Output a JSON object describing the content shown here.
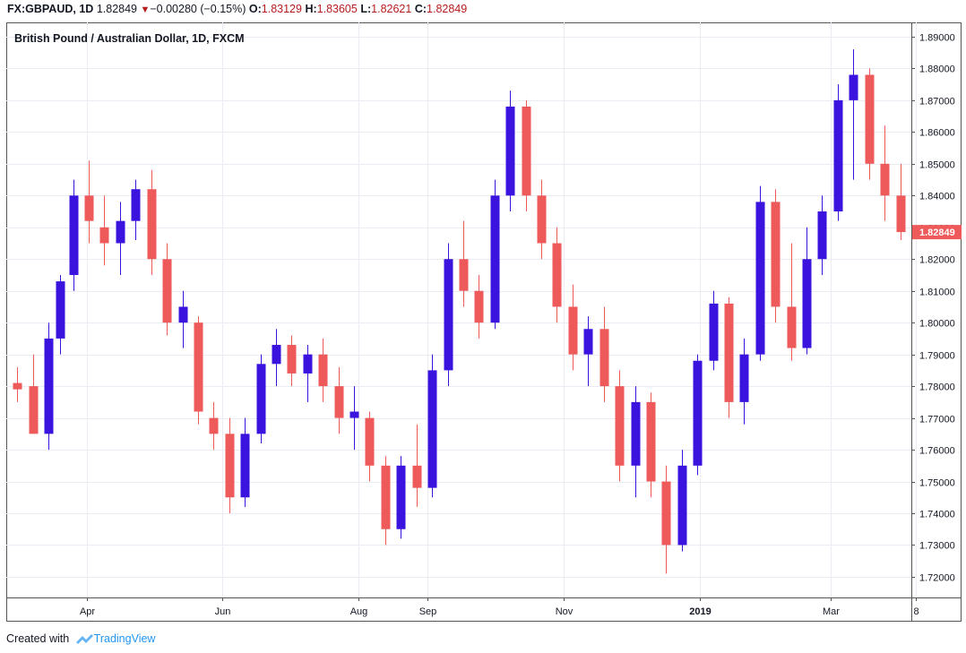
{
  "header": {
    "symbol": "FX:GBPAUD",
    "interval": "1D",
    "last": "1.82849",
    "change": "−0.00280 (−0.15%)",
    "open_label": "O:",
    "open": "1.83129",
    "high_label": "H:",
    "high": "1.83605",
    "low_label": "L:",
    "low": "1.82621",
    "close_label": "C:",
    "close": "1.82849",
    "arrow_icon": "down-triangle-icon"
  },
  "footer": {
    "created_with": "Created with",
    "brand": "TradingView",
    "logo_icon": "tradingview-cloud-icon"
  },
  "colors": {
    "up": "#3a13de",
    "down": "#ee5a5a",
    "grid": "#e9ecf2",
    "axis": "#555555",
    "price_tag": "#ee5a5a"
  },
  "chart_data": {
    "type": "candlestick",
    "title": "British Pound / Australian Dollar, 1D, FXCM",
    "ylim": [
      1.7135,
      1.8945
    ],
    "yticks": [
      "1.72000",
      "1.73000",
      "1.74000",
      "1.75000",
      "1.76000",
      "1.77000",
      "1.78000",
      "1.79000",
      "1.80000",
      "1.81000",
      "1.82000",
      "1.83000",
      "1.84000",
      "1.85000",
      "1.86000",
      "1.87000",
      "1.88000",
      "1.89000"
    ],
    "xticks": [
      "Apr",
      "Jun",
      "Aug",
      "Sep",
      "Nov",
      "2019",
      "Mar",
      "8"
    ],
    "last_price": "1.82849",
    "grid": true,
    "series": [
      {
        "x": "2018-03-01",
        "ohlc": [
          1.781,
          1.786,
          1.775,
          1.779
        ]
      },
      {
        "x": "2018-03-08",
        "ohlc": [
          1.78,
          1.79,
          1.77,
          1.765
        ]
      },
      {
        "x": "2018-03-15",
        "ohlc": [
          1.765,
          1.8,
          1.76,
          1.795
        ]
      },
      {
        "x": "2018-03-20",
        "ohlc": [
          1.795,
          1.815,
          1.79,
          1.813
        ]
      },
      {
        "x": "2018-03-26",
        "ohlc": [
          1.815,
          1.845,
          1.81,
          1.84
        ]
      },
      {
        "x": "2018-04-02",
        "ohlc": [
          1.84,
          1.851,
          1.825,
          1.832
        ]
      },
      {
        "x": "2018-04-09",
        "ohlc": [
          1.83,
          1.84,
          1.818,
          1.825
        ]
      },
      {
        "x": "2018-04-16",
        "ohlc": [
          1.825,
          1.838,
          1.815,
          1.832
        ]
      },
      {
        "x": "2018-04-23",
        "ohlc": [
          1.832,
          1.845,
          1.826,
          1.842
        ]
      },
      {
        "x": "2018-04-30",
        "ohlc": [
          1.842,
          1.848,
          1.815,
          1.82
        ]
      },
      {
        "x": "2018-05-07",
        "ohlc": [
          1.82,
          1.825,
          1.796,
          1.8
        ]
      },
      {
        "x": "2018-05-14",
        "ohlc": [
          1.8,
          1.81,
          1.792,
          1.805
        ]
      },
      {
        "x": "2018-05-21",
        "ohlc": [
          1.8,
          1.802,
          1.768,
          1.772
        ]
      },
      {
        "x": "2018-05-28",
        "ohlc": [
          1.77,
          1.775,
          1.76,
          1.765
        ]
      },
      {
        "x": "2018-06-04",
        "ohlc": [
          1.765,
          1.77,
          1.74,
          1.745
        ]
      },
      {
        "x": "2018-06-11",
        "ohlc": [
          1.745,
          1.77,
          1.742,
          1.765
        ]
      },
      {
        "x": "2018-06-18",
        "ohlc": [
          1.765,
          1.79,
          1.762,
          1.787
        ]
      },
      {
        "x": "2018-06-25",
        "ohlc": [
          1.787,
          1.798,
          1.78,
          1.793
        ]
      },
      {
        "x": "2018-07-02",
        "ohlc": [
          1.793,
          1.796,
          1.78,
          1.784
        ]
      },
      {
        "x": "2018-07-09",
        "ohlc": [
          1.784,
          1.793,
          1.775,
          1.79
        ]
      },
      {
        "x": "2018-07-16",
        "ohlc": [
          1.79,
          1.795,
          1.775,
          1.78
        ]
      },
      {
        "x": "2018-07-23",
        "ohlc": [
          1.78,
          1.786,
          1.765,
          1.77
        ]
      },
      {
        "x": "2018-07-30",
        "ohlc": [
          1.77,
          1.78,
          1.76,
          1.772
        ]
      },
      {
        "x": "2018-08-06",
        "ohlc": [
          1.77,
          1.772,
          1.75,
          1.755
        ]
      },
      {
        "x": "2018-08-13",
        "ohlc": [
          1.755,
          1.758,
          1.73,
          1.735
        ]
      },
      {
        "x": "2018-08-20",
        "ohlc": [
          1.735,
          1.758,
          1.732,
          1.755
        ]
      },
      {
        "x": "2018-08-27",
        "ohlc": [
          1.755,
          1.768,
          1.742,
          1.748
        ]
      },
      {
        "x": "2018-09-03",
        "ohlc": [
          1.748,
          1.79,
          1.745,
          1.785
        ]
      },
      {
        "x": "2018-09-10",
        "ohlc": [
          1.785,
          1.825,
          1.78,
          1.82
        ]
      },
      {
        "x": "2018-09-17",
        "ohlc": [
          1.82,
          1.832,
          1.805,
          1.81
        ]
      },
      {
        "x": "2018-09-24",
        "ohlc": [
          1.81,
          1.815,
          1.795,
          1.8
        ]
      },
      {
        "x": "2018-10-01",
        "ohlc": [
          1.8,
          1.845,
          1.798,
          1.84
        ]
      },
      {
        "x": "2018-10-08",
        "ohlc": [
          1.84,
          1.873,
          1.835,
          1.868
        ]
      },
      {
        "x": "2018-10-15",
        "ohlc": [
          1.868,
          1.87,
          1.835,
          1.84
        ]
      },
      {
        "x": "2018-10-22",
        "ohlc": [
          1.84,
          1.845,
          1.82,
          1.825
        ]
      },
      {
        "x": "2018-10-29",
        "ohlc": [
          1.825,
          1.83,
          1.8,
          1.805
        ]
      },
      {
        "x": "2018-11-05",
        "ohlc": [
          1.805,
          1.812,
          1.785,
          1.79
        ]
      },
      {
        "x": "2018-11-12",
        "ohlc": [
          1.79,
          1.802,
          1.78,
          1.798
        ]
      },
      {
        "x": "2018-11-19",
        "ohlc": [
          1.798,
          1.805,
          1.775,
          1.78
        ]
      },
      {
        "x": "2018-11-26",
        "ohlc": [
          1.78,
          1.785,
          1.75,
          1.755
        ]
      },
      {
        "x": "2018-12-03",
        "ohlc": [
          1.755,
          1.78,
          1.745,
          1.775
        ]
      },
      {
        "x": "2018-12-10",
        "ohlc": [
          1.775,
          1.778,
          1.745,
          1.75
        ]
      },
      {
        "x": "2018-12-17",
        "ohlc": [
          1.75,
          1.755,
          1.721,
          1.73
        ]
      },
      {
        "x": "2018-12-24",
        "ohlc": [
          1.73,
          1.76,
          1.728,
          1.755
        ]
      },
      {
        "x": "2018-12-31",
        "ohlc": [
          1.755,
          1.79,
          1.752,
          1.788
        ]
      },
      {
        "x": "2019-01-07",
        "ohlc": [
          1.788,
          1.81,
          1.785,
          1.806
        ]
      },
      {
        "x": "2019-01-14",
        "ohlc": [
          1.806,
          1.808,
          1.77,
          1.775
        ]
      },
      {
        "x": "2019-01-21",
        "ohlc": [
          1.775,
          1.795,
          1.768,
          1.79
        ]
      },
      {
        "x": "2019-01-28",
        "ohlc": [
          1.79,
          1.843,
          1.788,
          1.838
        ]
      },
      {
        "x": "2019-02-04",
        "ohlc": [
          1.838,
          1.842,
          1.8,
          1.805
        ]
      },
      {
        "x": "2019-02-11",
        "ohlc": [
          1.805,
          1.825,
          1.788,
          1.792
        ]
      },
      {
        "x": "2019-02-18",
        "ohlc": [
          1.792,
          1.83,
          1.79,
          1.82
        ]
      },
      {
        "x": "2019-02-25",
        "ohlc": [
          1.82,
          1.84,
          1.815,
          1.835
        ]
      },
      {
        "x": "2019-03-04",
        "ohlc": [
          1.835,
          1.875,
          1.832,
          1.87
        ]
      },
      {
        "x": "2019-03-11",
        "ohlc": [
          1.87,
          1.886,
          1.845,
          1.878
        ]
      },
      {
        "x": "2019-03-18",
        "ohlc": [
          1.878,
          1.88,
          1.845,
          1.85
        ]
      },
      {
        "x": "2019-03-25",
        "ohlc": [
          1.85,
          1.862,
          1.832,
          1.84
        ]
      },
      {
        "x": "2019-04-01",
        "ohlc": [
          1.84,
          1.85,
          1.826,
          1.8285
        ]
      }
    ]
  }
}
